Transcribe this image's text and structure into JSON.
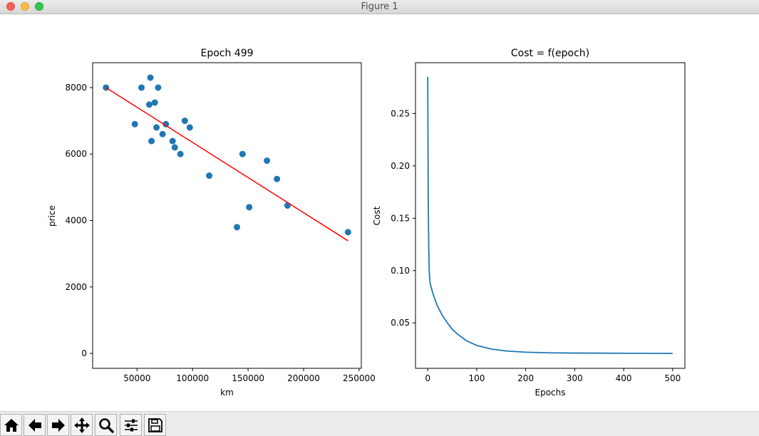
{
  "window": {
    "title": "Figure 1"
  },
  "toolbar": {
    "buttons": [
      {
        "name": "home",
        "icon": "home-icon"
      },
      {
        "name": "back",
        "icon": "arrow-left-icon"
      },
      {
        "name": "forward",
        "icon": "arrow-right-icon"
      },
      {
        "name": "pan",
        "icon": "move-icon"
      },
      {
        "name": "zoom",
        "icon": "zoom-icon"
      },
      {
        "name": "configure-subplots",
        "icon": "sliders-icon"
      },
      {
        "name": "save",
        "icon": "floppy-icon"
      }
    ]
  },
  "chart_data": [
    {
      "type": "scatter",
      "title": "Epoch 499",
      "xlabel": "km",
      "ylabel": "price",
      "xlim": [
        10000,
        252000
      ],
      "ylim": [
        -450,
        8750
      ],
      "xticks": [
        50000,
        100000,
        150000,
        200000,
        250000
      ],
      "yticks": [
        0,
        2000,
        4000,
        6000,
        8000
      ],
      "points_color": "#1f77b4",
      "points": [
        [
          22000,
          8000
        ],
        [
          48000,
          6900
        ],
        [
          54000,
          8000
        ],
        [
          61000,
          7490
        ],
        [
          62000,
          8300
        ],
        [
          63000,
          6390
        ],
        [
          66000,
          7550
        ],
        [
          67500,
          6800
        ],
        [
          69000,
          8000
        ],
        [
          73000,
          6600
        ],
        [
          76000,
          6900
        ],
        [
          82000,
          6390
        ],
        [
          84000,
          6200
        ],
        [
          89000,
          6000
        ],
        [
          93000,
          7000
        ],
        [
          97500,
          6800
        ],
        [
          115000,
          5350
        ],
        [
          140000,
          3800
        ],
        [
          145000,
          6000
        ],
        [
          151000,
          4400
        ],
        [
          167000,
          5800
        ],
        [
          176000,
          5250
        ],
        [
          185500,
          4450
        ],
        [
          240000,
          3650
        ]
      ],
      "fit_line": {
        "color": "#ff0000",
        "x": [
          22000,
          240000
        ],
        "y": [
          8000,
          3390
        ]
      }
    },
    {
      "type": "line",
      "title": "Cost = f(epoch)",
      "xlabel": "Epochs",
      "ylabel": "Cost",
      "xlim": [
        -25,
        525
      ],
      "ylim": [
        0.0066,
        0.2986
      ],
      "xticks": [
        0,
        100,
        200,
        300,
        400,
        500
      ],
      "yticks": [
        0.05,
        0.1,
        0.15,
        0.2,
        0.25
      ],
      "ytick_labels": [
        "0.05",
        "0.10",
        "0.15",
        "0.20",
        "0.25"
      ],
      "series": [
        {
          "color": "#1f77b4",
          "x": [
            0,
            0.5,
            1,
            2,
            3,
            4,
            5,
            7,
            10,
            15,
            20,
            30,
            40,
            50,
            60,
            80,
            100,
            130,
            160,
            200,
            250,
            300,
            350,
            400,
            450,
            500
          ],
          "y": [
            0.285,
            0.23,
            0.17,
            0.123,
            0.1,
            0.092,
            0.088,
            0.084,
            0.079,
            0.072,
            0.066,
            0.057,
            0.05,
            0.044,
            0.0395,
            0.0327,
            0.0285,
            0.025,
            0.0232,
            0.022,
            0.0214,
            0.0212,
            0.0211,
            0.021,
            0.0209,
            0.0208
          ]
        }
      ]
    }
  ]
}
